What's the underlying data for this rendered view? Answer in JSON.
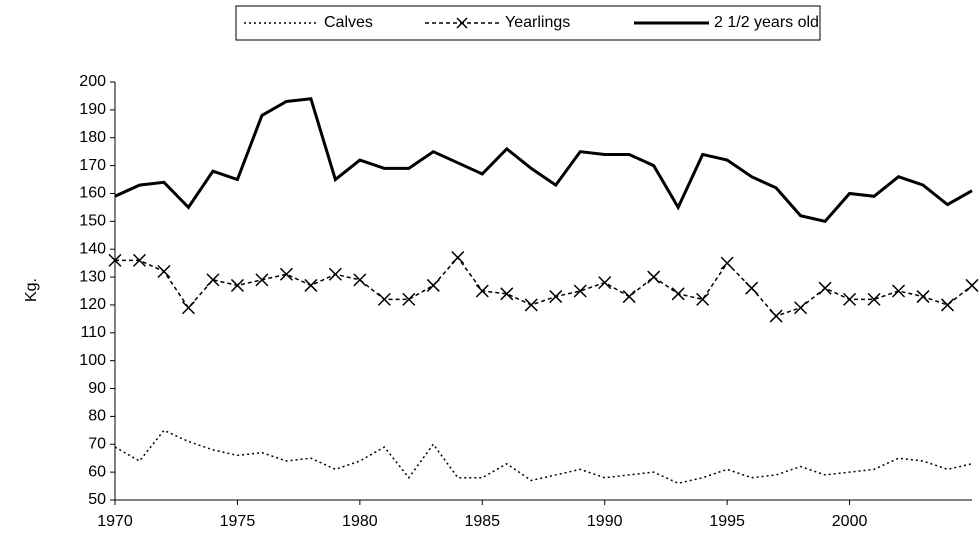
{
  "chart_data": {
    "type": "line",
    "x": [
      1970,
      1971,
      1972,
      1973,
      1974,
      1975,
      1976,
      1977,
      1978,
      1979,
      1980,
      1981,
      1982,
      1983,
      1984,
      1985,
      1986,
      1987,
      1988,
      1989,
      1990,
      1991,
      1992,
      1993,
      1994,
      1995,
      1996,
      1997,
      1998,
      1999,
      2000,
      2001,
      2002,
      2003,
      2004,
      2005
    ],
    "series": [
      {
        "name": "Calves",
        "color": "#000000",
        "style": "dotted",
        "marker": "none",
        "values": [
          69,
          64,
          75,
          71,
          68,
          66,
          67,
          64,
          65,
          61,
          64,
          69,
          58,
          70,
          58,
          58,
          63,
          57,
          59,
          61,
          58,
          59,
          60,
          56,
          58,
          61,
          58,
          59,
          62,
          59,
          60,
          61,
          65,
          64,
          61,
          63
        ]
      },
      {
        "name": "Yearlings",
        "color": "#000000",
        "style": "dashed",
        "marker": "x",
        "values": [
          136,
          136,
          132,
          119,
          129,
          127,
          129,
          131,
          127,
          131,
          129,
          122,
          122,
          127,
          137,
          125,
          124,
          120,
          123,
          125,
          128,
          123,
          130,
          124,
          122,
          135,
          126,
          116,
          119,
          126,
          122,
          122,
          125,
          123,
          120,
          127
        ]
      },
      {
        "name": "2 1/2 years old",
        "color": "#000000",
        "style": "solid",
        "marker": "none",
        "values": [
          159,
          163,
          164,
          155,
          168,
          165,
          188,
          193,
          194,
          165,
          172,
          169,
          169,
          175,
          171,
          167,
          176,
          169,
          163,
          175,
          174,
          174,
          170,
          155,
          174,
          172,
          166,
          162,
          152,
          150,
          160,
          159,
          166,
          163,
          156,
          161
        ]
      }
    ],
    "y_label": "Kg.",
    "xlim": [
      1970,
      2005
    ],
    "xticks": [
      1970,
      1975,
      1980,
      1985,
      1990,
      1995,
      2000
    ],
    "ylim": [
      50,
      200
    ],
    "yticks": [
      50,
      60,
      70,
      80,
      90,
      100,
      110,
      120,
      130,
      140,
      150,
      160,
      170,
      180,
      190,
      200
    ],
    "legend": "top"
  }
}
